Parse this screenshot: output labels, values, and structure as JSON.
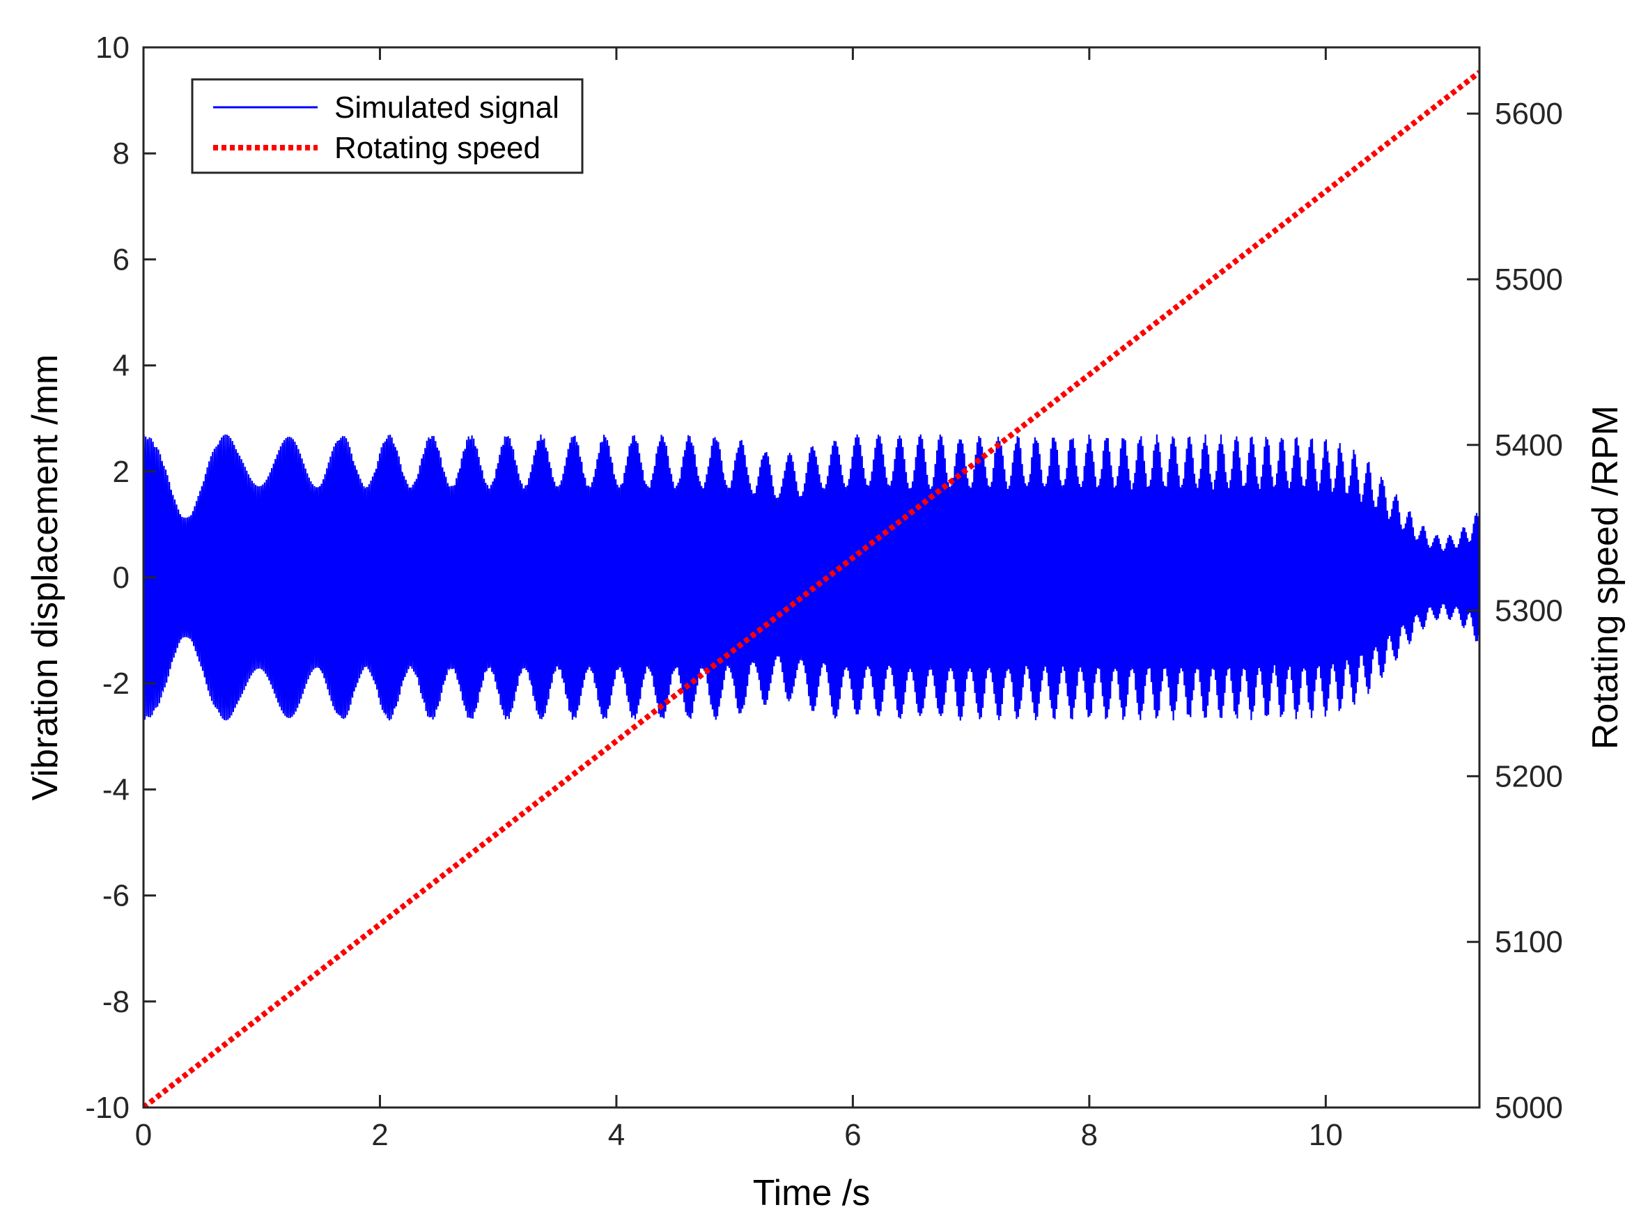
{
  "chart_data": {
    "type": "line",
    "xlabel": "Time /s",
    "ylabel_left": "Vibration displacement /mm",
    "ylabel_right": "Rotating speed /RPM",
    "xlim": [
      0,
      11.3
    ],
    "ylim_left": [
      -10,
      10
    ],
    "ylim_right": [
      5000,
      5640
    ],
    "x_ticks": [
      0,
      2,
      4,
      6,
      8,
      10
    ],
    "y_ticks_left": [
      -10,
      -8,
      -6,
      -4,
      -2,
      0,
      2,
      4,
      6,
      8,
      10
    ],
    "y_ticks_right": [
      5000,
      5100,
      5200,
      5300,
      5400,
      5500,
      5600
    ],
    "x_tick_labels": [
      "0",
      "2",
      "4",
      "6",
      "8",
      "10"
    ],
    "y_tick_labels_left": [
      "-10",
      "-8",
      "-6",
      "-4",
      "-2",
      "0",
      "2",
      "4",
      "6",
      "8",
      "10"
    ],
    "y_tick_labels_right": [
      "5000",
      "5100",
      "5200",
      "5300",
      "5400",
      "5500",
      "5600"
    ],
    "grid": false,
    "legend_position": "top-left",
    "series": [
      {
        "name": "Simulated signal",
        "axis": "left",
        "style": "solid",
        "color": "#0000ff",
        "description_values": {
          "amplitude_max": 2.7,
          "envelope_min_points": [
            {
              "x": 0.35,
              "y": 1.75
            },
            {
              "x": 5.4,
              "y": 2.35
            },
            {
              "x": 11.0,
              "y": 0.8
            }
          ]
        }
      },
      {
        "name": "Rotating speed",
        "axis": "right",
        "style": "dotted",
        "color": "#ff0000",
        "x": [
          0,
          11.3
        ],
        "y": [
          5000,
          5625
        ]
      }
    ]
  }
}
